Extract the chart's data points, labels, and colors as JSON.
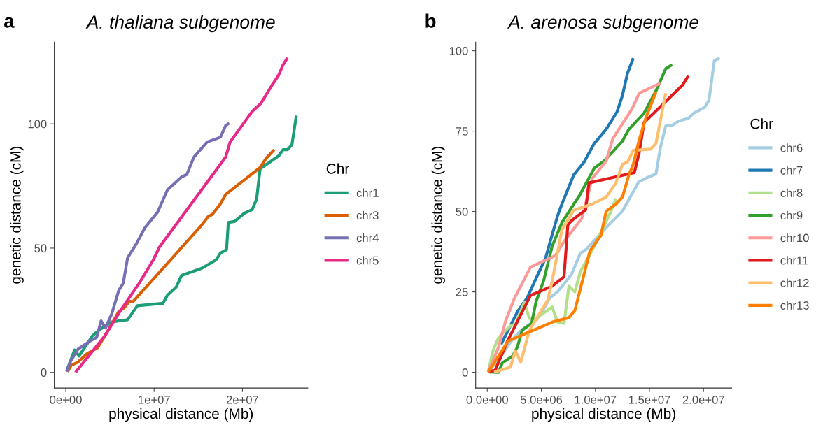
{
  "chart_data": [
    {
      "type": "line",
      "title": "A. thaliana subgenome",
      "xlabel": "physical distance (Mb)",
      "ylabel": "genetic distance (cM)",
      "legend_title": "Chr",
      "legend": "right",
      "grid": false,
      "annotations": [
        "a"
      ],
      "xlim": [
        -1300000.0,
        27400000.0
      ],
      "ylim": [
        -6.3,
        132.9
      ],
      "xticks": [
        {
          "value": 0,
          "label": "0e+00"
        },
        {
          "value": 10000000.0,
          "label": "1e+07"
        },
        {
          "value": 20000000.0,
          "label": "2e+07"
        }
      ],
      "yticks": [
        0,
        50,
        100
      ],
      "series": [
        {
          "name": "chr1",
          "color": "#1b9e77",
          "x": [
            100000.0,
            1000000.0,
            1500000.0,
            3000000.0,
            3750000.0,
            5200000.0,
            7000000.0,
            8100000.0,
            11000000.0,
            11500000.0,
            12500000.0,
            13100000.0,
            15400000.0,
            17000000.0,
            17500000.0,
            18200000.0,
            18400000.0,
            19100000.0,
            20200000.0,
            21100000.0,
            21600000.0,
            22000000.0,
            24100000.0,
            24600000.0,
            25100000.0,
            25600000.0,
            26100000.0
          ],
          "values": [
            0.5,
            9,
            6.6,
            14.6,
            17,
            20.3,
            21.2,
            26.8,
            27.8,
            31,
            34.3,
            39,
            41.9,
            45.2,
            48,
            49.4,
            60.3,
            60.7,
            64,
            65.5,
            69.7,
            81.9,
            87.1,
            89.6,
            89.6,
            91.6,
            103.3
          ]
        },
        {
          "name": "chr3",
          "color": "#d95f02",
          "x": [
            200000.0,
            600000.0,
            1400000.0,
            2400000.0,
            3600000.0,
            4500000.0,
            6000000.0,
            6600000.0,
            7200000.0,
            7600000.0,
            15400000.0,
            16100000.0,
            16600000.0,
            17500000.0,
            18100000.0,
            22000000.0,
            22700000.0,
            23600000.0
          ],
          "values": [
            0.2,
            2.8,
            4.2,
            7.5,
            9.9,
            15.1,
            24.5,
            25.9,
            28.7,
            28.4,
            59.3,
            62.6,
            63.6,
            67.8,
            71.6,
            82.4,
            86.2,
            89.6
          ]
        },
        {
          "name": "chr4",
          "color": "#7570b3",
          "x": [
            100000.0,
            500000.0,
            1400000.0,
            2000000.0,
            2800000.0,
            3500000.0,
            4000000.0,
            4500000.0,
            5200000.0,
            6000000.0,
            6500000.0,
            7000000.0,
            8000000.0,
            9000000.0,
            10400000.0,
            11500000.0,
            13100000.0,
            13700000.0,
            14500000.0,
            16000000.0,
            17500000.0,
            18100000.0,
            18500000.0
          ],
          "values": [
            0.3,
            4.2,
            9.4,
            10.8,
            12.7,
            14.1,
            20.7,
            17.9,
            23.5,
            33,
            35.8,
            46.1,
            51.8,
            58.4,
            64.5,
            73.4,
            78.6,
            79.6,
            86.6,
            92.7,
            94.6,
            99.3,
            100.3
          ]
        },
        {
          "name": "chr5",
          "color": "#e7298a",
          "x": [
            1100000.0,
            4400000.0,
            6200000.0,
            8300000.0,
            9900000.0,
            10600000.0,
            18100000.0,
            18600000.0,
            21100000.0,
            22100000.0,
            23300000.0,
            24100000.0,
            24600000.0,
            25100000.0
          ],
          "values": [
            0,
            14.6,
            24.9,
            35.8,
            45.2,
            50.4,
            86.6,
            92.7,
            105,
            108.3,
            115.3,
            119.6,
            123.8,
            126.6
          ]
        }
      ]
    },
    {
      "type": "line",
      "title": "A. arenosa subgenome",
      "xlabel": "physical distance (Mb)",
      "ylabel": "genetic distance (cM)",
      "legend_title": "Chr",
      "legend": "right",
      "grid": false,
      "annotations": [
        "b"
      ],
      "xlim": [
        -1070000.0,
        22600000.0
      ],
      "ylim": [
        -4.9,
        102.7
      ],
      "xticks": [
        {
          "value": 0,
          "label": "0.0e+00"
        },
        {
          "value": 5000000.0,
          "label": "5.0e+06"
        },
        {
          "value": 10000000.0,
          "label": "1.0e+07"
        },
        {
          "value": 15000000.0,
          "label": "1.5e+07"
        },
        {
          "value": 20000000.0,
          "label": "2.0e+07"
        }
      ],
      "yticks": [
        0,
        25,
        50,
        75,
        100
      ],
      "series": [
        {
          "name": "chr6",
          "color": "#a6cee3",
          "x": [
            90000.0,
            1280000.0,
            2150000.0,
            3000000.0,
            3900000.0,
            4500000.0,
            5200000.0,
            5800000.0,
            6500000.0,
            7800000.0,
            8600000.0,
            9100000.0,
            11000000.0,
            12500000.0,
            14000000.0,
            14700000.0,
            15600000.0,
            16000000.0,
            16500000.0,
            17100000.0,
            17700000.0,
            18600000.0,
            19100000.0,
            20100000.0,
            20500000.0,
            21000000.0,
            21500000.0
          ],
          "values": [
            0.1,
            5.1,
            9.4,
            12.7,
            14.9,
            16.0,
            19.6,
            23.2,
            25,
            30.5,
            37,
            38.1,
            45,
            50.1,
            59.2,
            60.4,
            61.7,
            69.7,
            76.6,
            76.8,
            78.1,
            79.0,
            80.6,
            82.4,
            84.6,
            97.0,
            97.7
          ]
        },
        {
          "name": "chr7",
          "color": "#1f78b4",
          "x": [
            1280000.0,
            2800000.0,
            3700000.0,
            4500000.0,
            5400000.0,
            6000000.0,
            6500000.0,
            6900000.0,
            8000000.0,
            8960000.0,
            9900000.0,
            11000000.0,
            12000000.0,
            12500000.0,
            12970000.0,
            13500000.0
          ],
          "values": [
            8.7,
            18.9,
            23.2,
            29.1,
            35.6,
            42.8,
            48.6,
            52.3,
            61.4,
            65.4,
            71.2,
            75.6,
            81.0,
            86.1,
            93,
            97.7
          ]
        },
        {
          "name": "chr8",
          "color": "#b2df8a",
          "x": [
            90000.0,
            520000.0,
            1060000.0,
            2150000.0,
            2600000.0,
            3440000.0,
            3900000.0,
            4500000.0,
            6000000.0,
            6500000.0,
            7100000.0,
            7550000.0,
            8100000.0,
            8600000.0,
            9900000.0,
            11450000.0,
            11900000.0
          ],
          "values": [
            0.1,
            6.6,
            10.9,
            14.5,
            14.9,
            21.8,
            16.7,
            16.7,
            20.3,
            15.6,
            15.2,
            26.8,
            25,
            31.2,
            39.2,
            50.1,
            54.1
          ]
        },
        {
          "name": "chr9",
          "color": "#33a02c",
          "x": [
            200000.0,
            1060000.0,
            1390000.0,
            2360000.0,
            2800000.0,
            3230000.0,
            4100000.0,
            4500000.0,
            5200000.0,
            6000000.0,
            6900000.0,
            8000000.0,
            8500000.0,
            9900000.0,
            10800000.0,
            12500000.0,
            13100000.0,
            14500000.0,
            15600000.0,
            16500000.0,
            17100000.0
          ],
          "values": [
            0.1,
            0,
            2.9,
            5.1,
            8,
            13.1,
            15.2,
            21.8,
            28.3,
            39.2,
            46.5,
            52.3,
            54.8,
            63.5,
            65.7,
            71.9,
            75.6,
            80.6,
            87.5,
            94.4,
            95.7
          ]
        },
        {
          "name": "chr10",
          "color": "#fb9a99",
          "x": [
            90000.0,
            1060000.0,
            1700000.0,
            2500000.0,
            4000000.0,
            6300000.0,
            7100000.0,
            8750000.0,
            9700000.0,
            11000000.0,
            11600000.0,
            13400000.0,
            14050000.0,
            16000000.0
          ],
          "values": [
            0.1,
            8,
            16,
            22.9,
            32.7,
            36.3,
            40.7,
            47.9,
            60.3,
            65.7,
            72.6,
            82,
            86.8,
            89.9
          ]
        },
        {
          "name": "chr11",
          "color": "#e31a1c",
          "x": [
            90000.0,
            740000.0,
            1930000.0,
            4000000.0,
            6000000.0,
            7100000.0,
            7450000.0,
            7800000.0,
            9100000.0,
            9400000.0,
            13600000.0,
            14050000.0,
            14500000.0,
            16400000.0,
            18050000.0,
            18600000.0
          ],
          "values": [
            0.1,
            0.7,
            10.1,
            23.9,
            26.8,
            29.7,
            45.8,
            47.2,
            50.5,
            58.9,
            62.1,
            68.3,
            77.7,
            83.9,
            89.3,
            92.2
          ]
        },
        {
          "name": "chr12",
          "color": "#fdbf6f",
          "x": [
            630000.0,
            2150000.0,
            2600000.0,
            3100000.0,
            3900000.0,
            5600000.0,
            6000000.0,
            6900000.0,
            8000000.0,
            9700000.0,
            11000000.0,
            11900000.0,
            12500000.0,
            12970000.0,
            13500000.0,
            15100000.0,
            15600000.0,
            16500000.0
          ],
          "values": [
            0,
            1.6,
            6.7,
            3.1,
            13.1,
            22.5,
            28.3,
            44.3,
            50.4,
            52.3,
            54.5,
            58.9,
            64.7,
            65.4,
            69,
            69.4,
            71.2,
            86.8
          ]
        },
        {
          "name": "chr13",
          "color": "#ff7f00",
          "x": [
            90000.0,
            1930000.0,
            6000000.0,
            7550000.0,
            8100000.0,
            9500000.0,
            10500000.0,
            11000000.0,
            11900000.0,
            12500000.0,
            13100000.0,
            13500000.0,
            14050000.0,
            14700000.0,
            15600000.0
          ],
          "values": [
            0.1,
            9.7,
            15.6,
            17,
            19.2,
            37.8,
            42.5,
            50.1,
            52.3,
            54.5,
            61.4,
            64.7,
            72.3,
            79.5,
            87.1
          ]
        }
      ]
    }
  ]
}
